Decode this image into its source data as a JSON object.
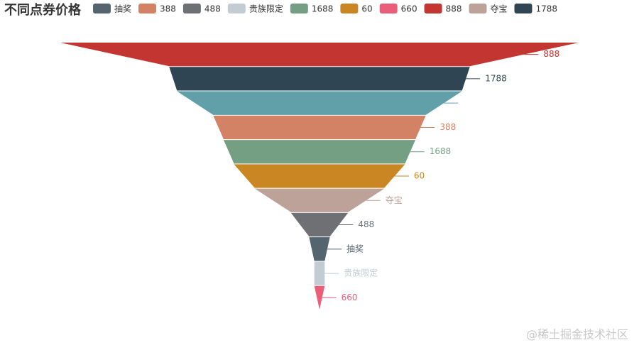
{
  "chart_data": {
    "type": "funnel",
    "title": "不同点券价格",
    "legend": [
      {
        "name": "抽奖",
        "color": "#546570"
      },
      {
        "name": "388",
        "color": "#d48265"
      },
      {
        "name": "488",
        "color": "#6e7074"
      },
      {
        "name": "贵族限定",
        "color": "#c4ccd3"
      },
      {
        "name": "1688",
        "color": "#749f83"
      },
      {
        "name": "60",
        "color": "#ca8622"
      },
      {
        "name": "660",
        "color": "#eb5e7a"
      },
      {
        "name": "888",
        "color": "#c23531"
      },
      {
        "name": "夺宝",
        "color": "#bda29a"
      },
      {
        "name": "1788",
        "color": "#2f4554"
      }
    ],
    "categories": [
      "888",
      "1788",
      null,
      "388",
      "1688",
      "60",
      "夺宝",
      "488",
      "抽奖",
      "贵族限定",
      "660"
    ],
    "values": [
      100,
      58,
      55,
      41,
      37,
      33,
      25,
      11,
      4,
      2,
      2
    ],
    "colors": [
      "#c23531",
      "#2f4554",
      "#61a0a8",
      "#d48265",
      "#749f83",
      "#ca8622",
      "#bda29a",
      "#6e7074",
      "#546570",
      "#c4ccd3",
      "#eb5e7a"
    ],
    "watermark": "@稀土掘金技术社区"
  }
}
